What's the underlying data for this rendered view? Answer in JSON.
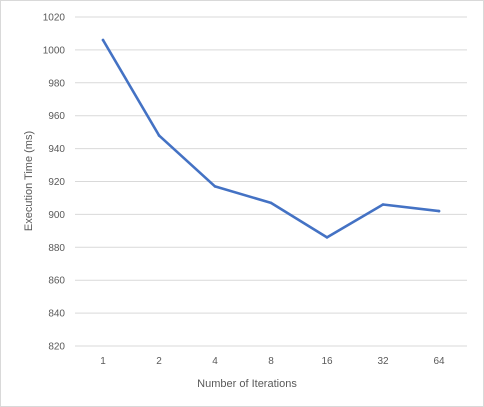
{
  "chart_data": {
    "type": "line",
    "categories": [
      "1",
      "2",
      "4",
      "8",
      "16",
      "32",
      "64"
    ],
    "series": [
      {
        "values": [
          1006,
          948,
          917,
          907,
          886,
          906,
          902
        ]
      }
    ],
    "xlabel": "Number of Iterations",
    "ylabel": "Execution Time (ms)",
    "ylim": [
      820,
      1020
    ],
    "yticks": [
      820,
      840,
      860,
      880,
      900,
      920,
      940,
      960,
      980,
      1000,
      1020
    ],
    "grid": true,
    "colors": {
      "line": "#4472c4",
      "grid": "#d9d9d9",
      "text": "#595959"
    }
  }
}
